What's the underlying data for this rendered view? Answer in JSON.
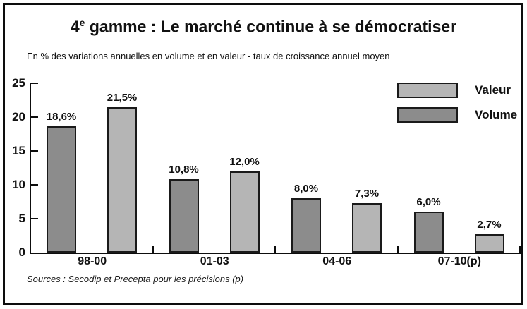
{
  "title": {
    "prefix": "4",
    "superscript": "e",
    "rest": " gamme : Le marché continue à se démocratiser"
  },
  "subtitle": "En % des variations annuelles en volume et en valeur - taux de croissance annuel moyen",
  "source": "Sources : Secodip et Precepta pour les précisions (p)",
  "legend": [
    {
      "label": "Valeur",
      "color": "#b5b5b5"
    },
    {
      "label": "Volume",
      "color": "#8c8c8c"
    }
  ],
  "colors": {
    "valeur_bar": "#b5b5b5",
    "volume_bar": "#8c8c8c",
    "axis": "#0d0d0d"
  },
  "chart_data": {
    "type": "bar",
    "title": "4e gamme : Le marché continue à se démocratiser",
    "subtitle": "En % des variations annuelles en volume et en valeur - taux de croissance annuel moyen",
    "categories": [
      "98-00",
      "01-03",
      "04-06",
      "07-10(p)"
    ],
    "series": [
      {
        "name": "Volume",
        "color": "#8c8c8c",
        "values": [
          18.6,
          10.8,
          8.0,
          6.0
        ],
        "labels": [
          "18,6%",
          "10,8%",
          "8,0%",
          "6,0%"
        ]
      },
      {
        "name": "Valeur",
        "color": "#b5b5b5",
        "values": [
          21.5,
          12.0,
          7.3,
          2.7
        ],
        "labels": [
          "21,5%",
          "12,0%",
          "7,3%",
          "2,7%"
        ]
      }
    ],
    "xlabel": "",
    "ylabel": "%",
    "ylim": [
      0,
      25
    ],
    "yticks": [
      0,
      5,
      10,
      15,
      20,
      25
    ],
    "grid": false,
    "legend_position": "top-right",
    "legend_order": [
      "Valeur",
      "Volume"
    ]
  }
}
